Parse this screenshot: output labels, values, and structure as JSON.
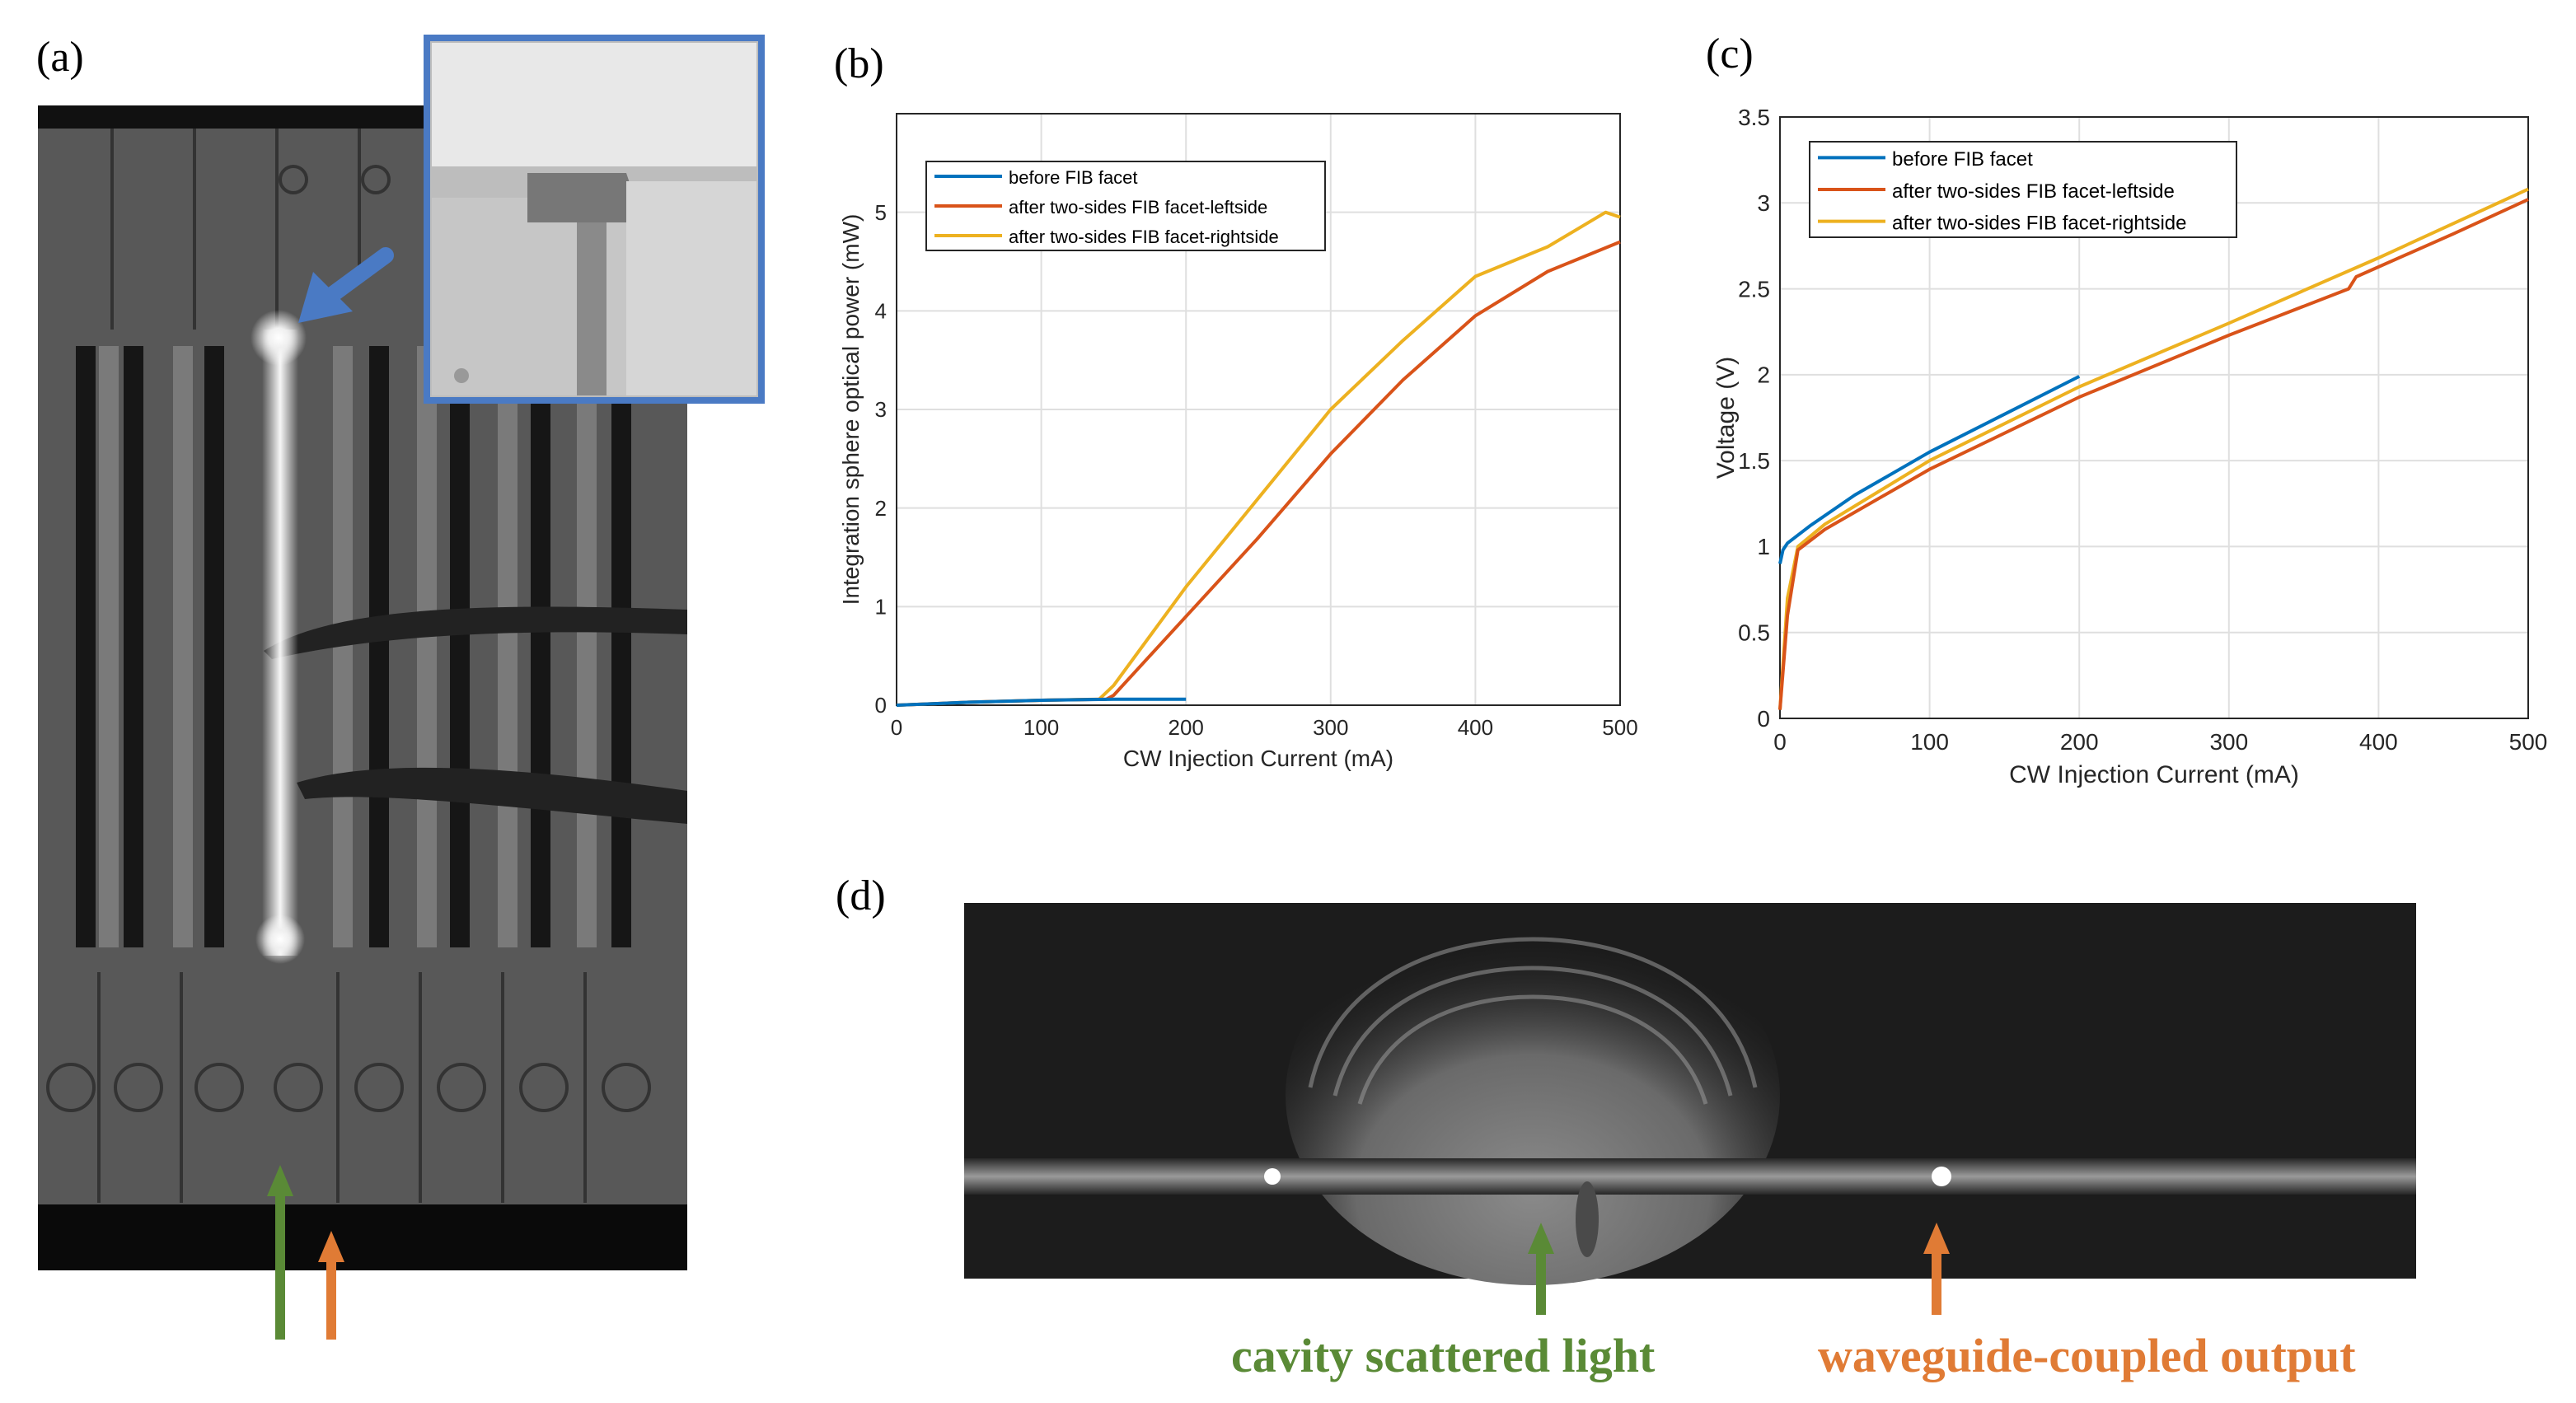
{
  "panel_labels": {
    "a": "(a)",
    "b": "(b)",
    "c": "(c)",
    "d": "(d)"
  },
  "colors": {
    "before": "#0072bd",
    "left": "#d95319",
    "right": "#edb120",
    "green_arrow": "#5a8a36",
    "orange_arrow": "#e07b35",
    "inset_border": "#4a7ac4"
  },
  "chart_data": [
    {
      "id": "b",
      "type": "line",
      "xlabel": "CW Injection Current (mA)",
      "ylabel": "Integration sphere optical power (mW)",
      "xlim": [
        0,
        500
      ],
      "ylim": [
        0,
        6
      ],
      "xticks": [
        0,
        100,
        200,
        300,
        400,
        500
      ],
      "yticks": [
        0,
        1,
        2,
        3,
        4,
        5
      ],
      "legend": [
        "before FIB facet",
        "after two-sides FIB facet-leftside",
        "after two-sides FIB facet-rightside"
      ],
      "legend_position": "top-left",
      "series": [
        {
          "name": "before FIB facet",
          "color": "#0072bd",
          "x": [
            0,
            50,
            100,
            150,
            200
          ],
          "y": [
            0.0,
            0.03,
            0.05,
            0.06,
            0.06
          ]
        },
        {
          "name": "after two-sides FIB facet-leftside",
          "color": "#d95319",
          "x": [
            0,
            50,
            100,
            145,
            150,
            200,
            250,
            300,
            350,
            400,
            450,
            500
          ],
          "y": [
            0.0,
            0.03,
            0.05,
            0.06,
            0.1,
            0.9,
            1.7,
            2.55,
            3.3,
            3.95,
            4.4,
            4.7
          ]
        },
        {
          "name": "after two-sides FIB facet-rightside",
          "color": "#edb120",
          "x": [
            0,
            50,
            100,
            140,
            150,
            200,
            250,
            300,
            350,
            400,
            450,
            490,
            500
          ],
          "y": [
            0.0,
            0.03,
            0.05,
            0.06,
            0.2,
            1.2,
            2.1,
            3.0,
            3.7,
            4.35,
            4.65,
            5.0,
            4.95
          ]
        }
      ]
    },
    {
      "id": "c",
      "type": "line",
      "xlabel": "CW Injection Current (mA)",
      "ylabel": "Voltage (V)",
      "xlim": [
        0,
        500
      ],
      "ylim": [
        0,
        3.5
      ],
      "xticks": [
        0,
        100,
        200,
        300,
        400,
        500
      ],
      "yticks": [
        0,
        0.5,
        1,
        1.5,
        2,
        2.5,
        3,
        3.5
      ],
      "legend": [
        "before FIB facet",
        "after two-sides FIB facet-leftside",
        "after two-sides FIB facet-rightside"
      ],
      "legend_position": "top-left",
      "series": [
        {
          "name": "before FIB facet",
          "color": "#0072bd",
          "x": [
            0,
            2,
            5,
            20,
            50,
            100,
            150,
            200
          ],
          "y": [
            0.9,
            0.98,
            1.02,
            1.12,
            1.3,
            1.55,
            1.77,
            1.99
          ]
        },
        {
          "name": "after two-sides FIB facet-leftside",
          "color": "#d95319",
          "x": [
            0,
            5,
            12,
            30,
            100,
            200,
            300,
            380,
            385,
            450,
            500
          ],
          "y": [
            0.05,
            0.6,
            0.98,
            1.1,
            1.45,
            1.87,
            2.23,
            2.5,
            2.57,
            2.82,
            3.02
          ]
        },
        {
          "name": "after two-sides FIB facet-rightside",
          "color": "#edb120",
          "x": [
            0,
            5,
            12,
            30,
            100,
            200,
            300,
            400,
            500
          ],
          "y": [
            0.05,
            0.7,
            1.0,
            1.13,
            1.5,
            1.93,
            2.3,
            2.68,
            3.08
          ]
        }
      ]
    }
  ],
  "captions": {
    "green": "cavity scattered light",
    "orange": "waveguide-coupled output"
  }
}
